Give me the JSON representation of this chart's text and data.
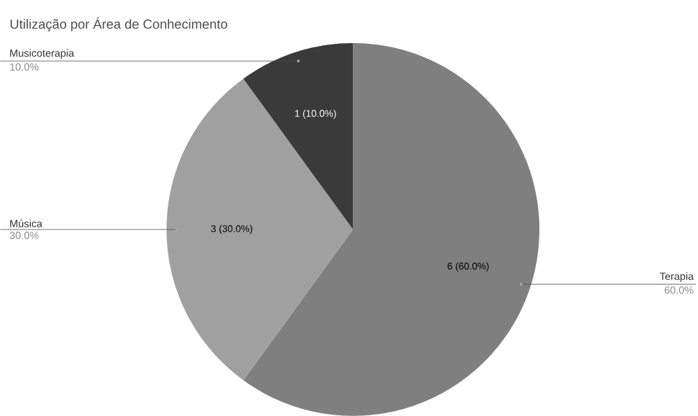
{
  "chart_data": {
    "type": "pie",
    "title": "Utilização por Área de Conhecimento",
    "categories": [
      "Terapia",
      "Música",
      "Musicoterapia"
    ],
    "values": [
      6,
      3,
      1
    ],
    "colors": [
      "#7f7f7f",
      "#a0a0a0",
      "#3a3a3a"
    ],
    "value_labels": [
      "6 (60.0%)",
      "3 (30.0%)",
      "1 (10.0%)"
    ],
    "annotations": [
      "60.0%",
      "30.0%",
      "10.0%"
    ]
  }
}
